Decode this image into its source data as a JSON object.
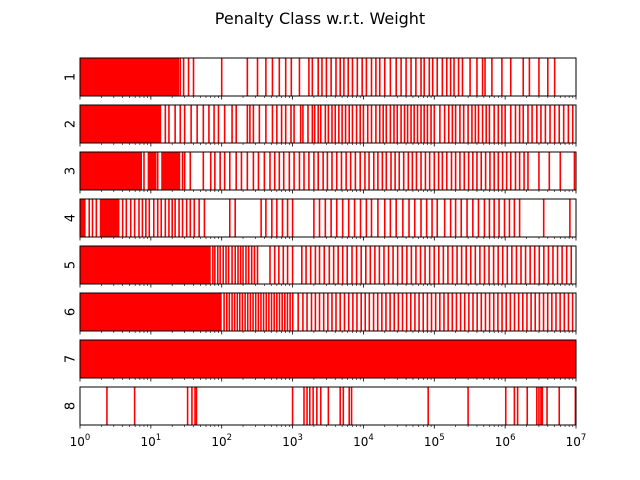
{
  "chart_data": {
    "type": "event-strip",
    "title": "Penalty Class w.r.t. Weight",
    "x_scale": "log",
    "xlim": [
      1,
      10000000
    ],
    "x_ticks": [
      {
        "base": "10",
        "exp": "0"
      },
      {
        "base": "10",
        "exp": "1"
      },
      {
        "base": "10",
        "exp": "2"
      },
      {
        "base": "10",
        "exp": "3"
      },
      {
        "base": "10",
        "exp": "4"
      },
      {
        "base": "10",
        "exp": "5"
      },
      {
        "base": "10",
        "exp": "6"
      },
      {
        "base": "10",
        "exp": "7"
      }
    ],
    "color": "#ff0000",
    "rows": [
      {
        "label": "1",
        "solid": [
          [
            1,
            25
          ]
        ],
        "events": [
          1.3,
          1.6,
          2.1,
          2.5,
          2.9,
          3.4,
          4.1,
          5.5,
          7,
          9,
          12,
          15,
          20,
          26,
          29,
          34,
          40,
          100,
          230,
          320,
          420,
          520,
          650,
          800,
          960,
          1250,
          1700,
          1900,
          2300,
          2600,
          3000,
          3500,
          4100,
          4700,
          5300,
          6100,
          7000,
          8200,
          9600,
          11000,
          13000,
          15000,
          17000,
          20000,
          24000,
          29000,
          34000,
          40000,
          47000,
          55000,
          65000,
          72000,
          85000,
          95000,
          110000,
          130000,
          150000,
          170000,
          190000,
          220000,
          250000,
          320000,
          400000,
          480000,
          520000,
          650000,
          900000,
          1200000,
          1800000,
          2200000,
          3000000,
          4000000,
          5000000
        ]
      },
      {
        "label": "2",
        "solid": [
          [
            1,
            14
          ]
        ],
        "events": [
          16,
          18,
          22,
          26,
          30,
          37,
          45,
          55,
          66,
          78,
          90,
          110,
          140,
          160,
          230,
          250,
          280,
          340,
          420,
          520,
          600,
          700,
          800,
          950,
          1050,
          1300,
          1400,
          1650,
          1900,
          2050,
          2300,
          2500,
          2900,
          3200,
          3600,
          4000,
          4500,
          5000,
          5600,
          6300,
          7000,
          8000,
          9000,
          10000,
          11500,
          13000,
          15000,
          17000,
          19000,
          21000,
          24000,
          27000,
          30000,
          34000,
          38000,
          42000,
          47000,
          52000,
          58000,
          65000,
          72000,
          80000,
          90000,
          100000,
          120000,
          140000,
          160000,
          180000,
          200000,
          230000,
          260000,
          300000,
          340000,
          380000,
          420000,
          480000,
          540000,
          600000,
          700000,
          800000,
          900000,
          1000000,
          1200000,
          1400000,
          1600000,
          1800000,
          2100000,
          2400000,
          2800000,
          3200000,
          3700000,
          4300000,
          5000000,
          5800000,
          6700000,
          7800000,
          9000000
        ]
      },
      {
        "label": "3",
        "solid": [
          [
            1,
            7.5
          ],
          [
            9,
            12
          ],
          [
            14,
            26
          ]
        ],
        "events": [
          8,
          12.5,
          28,
          30,
          36,
          55,
          70,
          80,
          95,
          110,
          130,
          160,
          190,
          230,
          280,
          330,
          400,
          480,
          560,
          650,
          750,
          900,
          1050,
          1250,
          1450,
          1700,
          2000,
          2300,
          2700,
          3100,
          3600,
          4200,
          4900,
          5700,
          6600,
          7700,
          9000,
          10500,
          12000,
          14000,
          16000,
          18500,
          21000,
          24500,
          28000,
          32000,
          37000,
          43000,
          49000,
          56000,
          65000,
          75000,
          86000,
          100000,
          115000,
          130000,
          150000,
          175000,
          200000,
          230000,
          265000,
          305000,
          350000,
          400000,
          460000,
          530000,
          610000,
          700000,
          800000,
          920000,
          1050000,
          1200000,
          1400000,
          1600000,
          1850000,
          2100000,
          3000000,
          4200000,
          6000000,
          9500000
        ]
      },
      {
        "label": "4",
        "solid": [
          [
            1,
            1.2
          ],
          [
            1.9,
            3.6
          ]
        ],
        "events": [
          1.35,
          1.5,
          1.7,
          4,
          4.5,
          5.2,
          5.9,
          6.8,
          7.6,
          8.5,
          9.5,
          11,
          12.5,
          14,
          16,
          18,
          20,
          22,
          25,
          28,
          32,
          36,
          41,
          48,
          57,
          130,
          155,
          360,
          420,
          510,
          600,
          720,
          850,
          1000,
          2000,
          2400,
          2900,
          3500,
          4200,
          5100,
          6200,
          7500,
          9100,
          11000,
          13000,
          16000,
          20000,
          24000,
          29000,
          36000,
          44000,
          53000,
          65000,
          78000,
          93000,
          110000,
          140000,
          170000,
          200000,
          240000,
          290000,
          350000,
          420000,
          510000,
          600000,
          700000,
          820000,
          980000,
          1150000,
          1350000,
          1600000,
          3500000,
          8200000
        ]
      },
      {
        "label": "5",
        "solid": [
          [
            1,
            70
          ]
        ],
        "events": [
          75,
          80,
          88,
          95,
          105,
          115,
          125,
          140,
          155,
          170,
          185,
          200,
          220,
          240,
          265,
          290,
          320,
          480,
          560,
          640,
          740,
          850,
          1000,
          1350,
          1550,
          1800,
          2100,
          2400,
          2800,
          3300,
          3800,
          4400,
          5100,
          5900,
          6900,
          8000,
          9300,
          10800,
          12500,
          14500,
          16800,
          19500,
          22600,
          26200,
          30400,
          35300,
          41000,
          47500,
          55100,
          63900,
          74100,
          86000,
          99800,
          115800,
          134300,
          155800,
          180700,
          209600,
          243100,
          282000,
          327100,
          379500,
          440200,
          510600,
          592300,
          687100,
          797000,
          924500,
          1072400,
          1244000,
          1443000,
          1673900,
          1941700,
          2252400,
          2612800,
          3030800,
          3515700,
          4078200,
          4730700,
          5487700,
          6365700,
          7384200,
          8565600
        ]
      },
      {
        "label": "6",
        "solid": [
          [
            1,
            100
          ]
        ],
        "events": [
          108,
          118,
          128,
          140,
          152,
          166,
          180,
          196,
          214,
          233,
          254,
          277,
          302,
          329,
          358,
          390,
          425,
          463,
          505,
          550,
          600,
          654,
          713,
          777,
          847,
          923,
          1006,
          1200,
          1400,
          1600,
          1850,
          2100,
          2400,
          2750,
          3150,
          3600,
          4100,
          4700,
          5400,
          6200,
          7100,
          8100,
          9300,
          10600,
          12100,
          13900,
          15900,
          18200,
          20800,
          23800,
          27200,
          31100,
          35600,
          40700,
          46600,
          53300,
          61000,
          69800,
          79900,
          91400,
          104600,
          119700,
          137000,
          156800,
          179400,
          205300,
          234900,
          268800,
          307600,
          352000,
          402800,
          461000,
          527500,
          603600,
          690700,
          790400,
          904500,
          1035000,
          1184400,
          1355300,
          1550900,
          1774700,
          2030900,
          2324000,
          2659400,
          3043200,
          3482400,
          3985100,
          4560200,
          5218400,
          5971600,
          6833500,
          7819800,
          8948400
        ]
      },
      {
        "label": "7",
        "solid": [
          [
            1,
            10000000
          ]
        ],
        "events": [
          900,
          1750,
          2600,
          15000,
          30000,
          65000
        ]
      },
      {
        "label": "8",
        "solid": [],
        "events": [
          2.4,
          5.9,
          33,
          38,
          42,
          44,
          1000,
          1450,
          1600,
          1750,
          1950,
          2200,
          2500,
          3200,
          4700,
          5200,
          6300,
          6800,
          82000,
          300000,
          1020000,
          1350000,
          1500000,
          2050000,
          2800000,
          3000000,
          3200000,
          3350000,
          3900000,
          5800000,
          9800000
        ]
      }
    ]
  }
}
